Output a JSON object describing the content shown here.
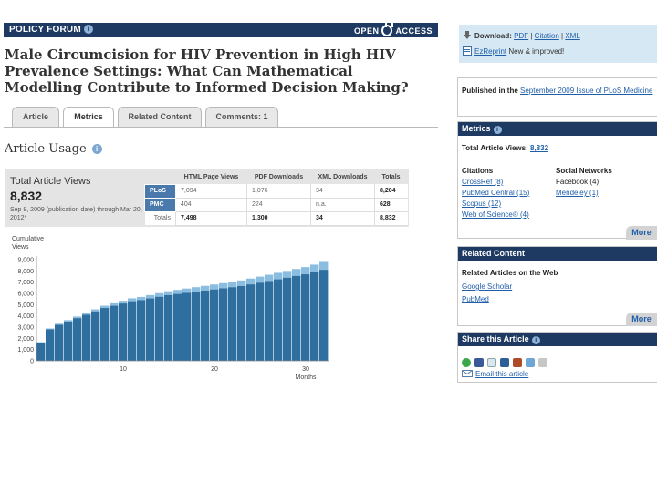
{
  "header": {
    "section_label": "POLICY FORUM",
    "open_access_left": "OPEN",
    "open_access_right": "ACCESS"
  },
  "article": {
    "title": "Male Circumcision for HIV Prevention in High HIV Prevalence Settings: What Can Mathematical Modelling Contribute to Informed Decision Making?"
  },
  "tabs": [
    {
      "label": "Article",
      "active": false
    },
    {
      "label": "Metrics",
      "active": true
    },
    {
      "label": "Related Content",
      "active": false
    },
    {
      "label": "Comments: 1",
      "active": false
    }
  ],
  "usage": {
    "heading": "Article Usage",
    "total_label": "Total Article Views",
    "total_value": "8,832",
    "date_range": "Sep 8, 2009 (publication date) through Mar 20, 2012*"
  },
  "stats_table": {
    "columns": [
      "HTML Page Views",
      "PDF Downloads",
      "XML Downloads",
      "Totals"
    ],
    "rows": [
      {
        "label": "PLoS",
        "values": [
          "7,094",
          "1,076",
          "34",
          "8,204"
        ]
      },
      {
        "label": "PMC",
        "values": [
          "404",
          "224",
          "n.a.",
          "628"
        ]
      },
      {
        "label": "Totals",
        "values": [
          "7,498",
          "1,300",
          "34",
          "8,832"
        ]
      }
    ]
  },
  "chart_data": {
    "type": "bar",
    "ylabel": "Cumulative Views",
    "xlabel": "Months",
    "ylim": [
      0,
      9000
    ],
    "yticks": [
      0,
      1000,
      2000,
      3000,
      4000,
      5000,
      6000,
      7000,
      8000,
      9000
    ],
    "ytick_labels": [
      "0",
      "1,000",
      "2,000",
      "3,000",
      "4,000",
      "5,000",
      "6,000",
      "7,000",
      "8,000",
      "9,000"
    ],
    "xticks": [
      10,
      20,
      30
    ],
    "x": [
      1,
      2,
      3,
      4,
      5,
      6,
      7,
      8,
      9,
      10,
      11,
      12,
      13,
      14,
      15,
      16,
      17,
      18,
      19,
      20,
      21,
      22,
      23,
      24,
      25,
      26,
      27,
      28,
      29,
      30,
      31,
      32
    ],
    "stacked": true,
    "colors": {
      "dark": "#2f6f9f",
      "light": "#8bbde0"
    },
    "series": [
      {
        "values": [
          1600,
          2800,
          3200,
          3500,
          3800,
          4100,
          4400,
          4700,
          4900,
          5100,
          5300,
          5400,
          5550,
          5700,
          5850,
          5950,
          6050,
          6150,
          6250,
          6350,
          6450,
          6550,
          6650,
          6800,
          6950,
          7100,
          7250,
          7400,
          7550,
          7700,
          7900,
          8100
        ]
      },
      {
        "values": [
          60,
          80,
          100,
          120,
          140,
          160,
          180,
          200,
          220,
          240,
          260,
          280,
          300,
          320,
          340,
          360,
          380,
          400,
          420,
          440,
          460,
          480,
          500,
          520,
          540,
          560,
          580,
          600,
          620,
          640,
          660,
          700
        ]
      }
    ]
  },
  "sidebar": {
    "download_label": "Download:",
    "download_links": [
      "PDF",
      "Citation",
      "XML"
    ],
    "download_sep": "|",
    "ezreprint_link": "EzReprint",
    "ezreprint_note": "New & improved!",
    "published_prefix": "Published in the",
    "published_link": "September 2009 Issue of PLoS Medicine",
    "metrics": {
      "title": "Metrics",
      "total_views_label": "Total Article Views:",
      "total_views_value": "8,832",
      "citations_title": "Citations",
      "citations": [
        "CrossRef (8)",
        "PubMed Central (15)",
        "Scopus (12)",
        "Web of Science® (4)"
      ],
      "social_title": "Social Networks",
      "social": [
        {
          "text": "Facebook (4)",
          "link": false
        },
        {
          "text": "Mendeley (1)",
          "link": true
        }
      ],
      "more": "More"
    },
    "related": {
      "title": "Related Content",
      "subtitle": "Related Articles on the Web",
      "links": [
        "Google Scholar",
        "PubMed"
      ],
      "more": "More"
    },
    "share": {
      "title": "Share this Article",
      "icons": [
        "stumbleupon-icon",
        "facebook-icon",
        "digg-icon",
        "reddit-icon",
        "delicious-icon",
        "mixx-icon",
        "connotea-icon"
      ],
      "email_link": "Email this article"
    }
  }
}
